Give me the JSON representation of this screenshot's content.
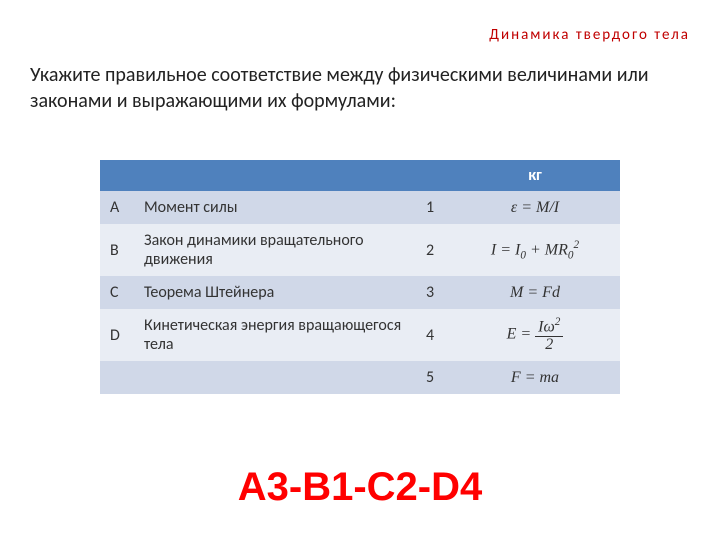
{
  "header": {
    "text": "Динамика  твердого  тела",
    "color": "#c00000"
  },
  "question": "Укажите правильное соответствие между физическими величинами или законами и выражающими их формулами:",
  "table": {
    "header_bg": "#4f81bd",
    "row_colors": [
      "#d0d8e8",
      "#e9edf4"
    ],
    "unit_header": "кг",
    "left": [
      {
        "letter": "A",
        "name": "Момент силы"
      },
      {
        "letter": "B",
        "name": "Закон динамики вращательного движения"
      },
      {
        "letter": "C",
        "name": "Теорема Штейнера"
      },
      {
        "letter": "D",
        "name": "Кинетическая энергия вращающегося тела"
      },
      {
        "letter": "",
        "name": ""
      }
    ],
    "right": [
      {
        "num": "1",
        "formula_html": "<i>ε</i> = <i>M</i>/<i>I</i>"
      },
      {
        "num": "2",
        "formula_html": "<i>I</i> = <i>I</i><sub>0</sub> + <i>MR</i><sub>0</sub><sup>2</sup>"
      },
      {
        "num": "3",
        "formula_html": "<i>M</i> = <i>Fd</i>"
      },
      {
        "num": "4",
        "formula_html": "<i>E</i> = <span class=\"frac\"><span class=\"num\"><i>Iω</i><sup>2</sup></span><span class=\"den\">2</span></span>"
      },
      {
        "num": "5",
        "formula_html": "<i>F</i> = <i>ma</i>"
      }
    ]
  },
  "answer": {
    "text": "A3-B1-C2-D4",
    "color": "#ff0000"
  }
}
